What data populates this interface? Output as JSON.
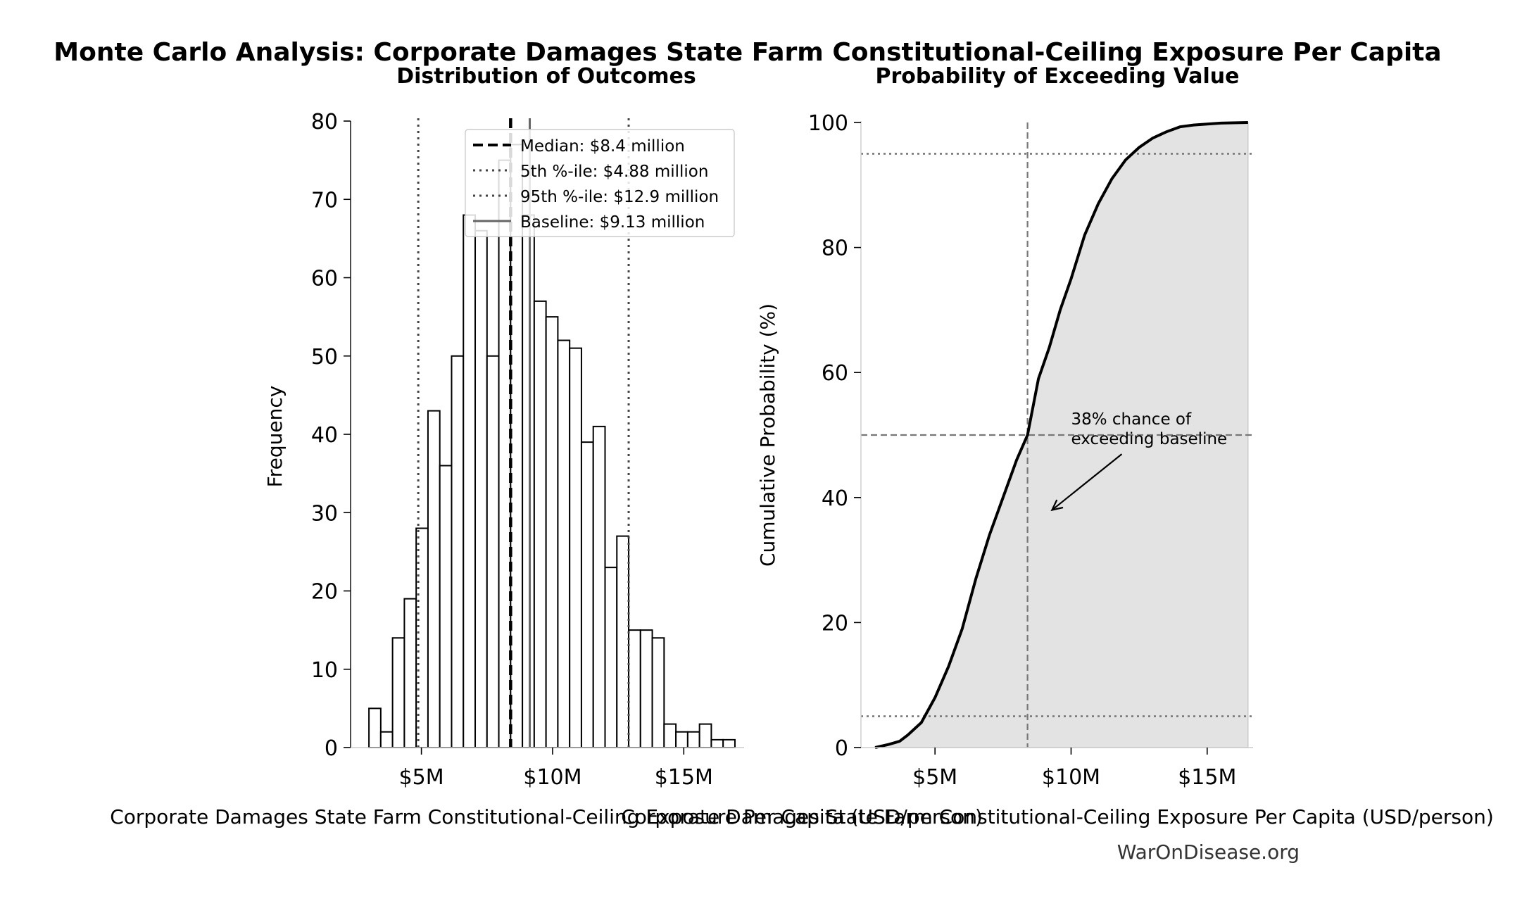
{
  "figure": {
    "suptitle": "Monte Carlo Analysis: Corporate Damages State Farm Constitutional-Ceiling Exposure Per Capita",
    "watermark": "WarOnDisease.org"
  },
  "colors": {
    "bar_fill": "#ffffff",
    "bar_edge": "#000000",
    "median_line": "#000000",
    "percentile_line": "#444444",
    "baseline_line": "#666666",
    "cdf_line": "#000000",
    "cdf_fill": "#e3e3e3",
    "reference_line": "#777777"
  },
  "chart_data": [
    {
      "type": "bar",
      "title": "Distribution of Outcomes",
      "xlabel": "Corporate Damages State Farm Constitutional-Ceiling Exposure Per Capita (USD/person)",
      "ylabel": "Frequency",
      "xlim": [
        2300000,
        17300000
      ],
      "ylim": [
        0,
        80
      ],
      "x_ticks": [
        {
          "value": 5000000,
          "label": "$5M"
        },
        {
          "value": 10000000,
          "label": "$10M"
        },
        {
          "value": 15000000,
          "label": "$15M"
        }
      ],
      "y_ticks": [
        {
          "value": 0,
          "label": "0"
        },
        {
          "value": 10,
          "label": "10"
        },
        {
          "value": 20,
          "label": "20"
        },
        {
          "value": 30,
          "label": "30"
        },
        {
          "value": 40,
          "label": "40"
        },
        {
          "value": 50,
          "label": "50"
        },
        {
          "value": 60,
          "label": "60"
        },
        {
          "value": 70,
          "label": "70"
        },
        {
          "value": 80,
          "label": "80"
        }
      ],
      "bin_start": 3000000,
      "bin_width": 450000,
      "values": [
        5,
        2,
        14,
        19,
        28,
        43,
        36,
        50,
        68,
        66,
        50,
        75,
        77,
        68,
        57,
        55,
        52,
        51,
        39,
        41,
        23,
        27,
        15,
        15,
        14,
        3,
        2,
        2,
        3,
        1,
        1
      ],
      "reference_lines": [
        {
          "name": "median",
          "value": 8400000,
          "style": "dashed"
        },
        {
          "name": "p5",
          "value": 4880000,
          "style": "dotted"
        },
        {
          "name": "p95",
          "value": 12900000,
          "style": "dotted"
        },
        {
          "name": "baseline",
          "value": 9130000,
          "style": "solid"
        }
      ],
      "legend": {
        "position": "top-right",
        "entries": [
          {
            "label": "Median: $8.4 million",
            "style": "dashed"
          },
          {
            "label": "5th %-ile: $4.88 million",
            "style": "dotted"
          },
          {
            "label": "95th %-ile: $12.9 million",
            "style": "dotted"
          },
          {
            "label": "Baseline: $9.13 million",
            "style": "solid"
          }
        ]
      },
      "grid": false
    },
    {
      "type": "area",
      "title": "Probability of Exceeding Value",
      "xlabel": "Corporate Damages State Farm Constitutional-Ceiling Exposure Per Capita (USD/person)",
      "ylabel": "Cumulative Probability (%)",
      "xlim": [
        3000000,
        16500000
      ],
      "ylim": [
        0,
        100
      ],
      "x_ticks": [
        {
          "value": 5000000,
          "label": "$5M"
        },
        {
          "value": 10000000,
          "label": "$10M"
        },
        {
          "value": 15000000,
          "label": "$15M"
        }
      ],
      "y_ticks": [
        {
          "value": 0,
          "label": "0"
        },
        {
          "value": 20,
          "label": "20"
        },
        {
          "value": 40,
          "label": "40"
        },
        {
          "value": 60,
          "label": "60"
        },
        {
          "value": 80,
          "label": "80"
        },
        {
          "value": 100,
          "label": "100"
        }
      ],
      "x": [
        2800000,
        3300000,
        3700000,
        4000000,
        4500000,
        5000000,
        5500000,
        6000000,
        6500000,
        7000000,
        7500000,
        8000000,
        8400000,
        8800000,
        9200000,
        9600000,
        10000000,
        10500000,
        11000000,
        11500000,
        12000000,
        12500000,
        13000000,
        13500000,
        14000000,
        14500000,
        15500000,
        16500000
      ],
      "y": [
        0,
        0.5,
        1,
        2,
        4,
        8,
        13,
        19,
        27,
        34,
        40,
        46,
        50,
        59,
        64,
        70,
        75,
        82,
        87,
        91,
        94,
        96,
        97.5,
        98.5,
        99.3,
        99.6,
        99.9,
        100
      ],
      "reference_lines": [
        {
          "name": "median",
          "axis": "x",
          "value": 8400000,
          "style": "dashed"
        },
        {
          "name": "50pct",
          "axis": "y",
          "value": 50,
          "style": "dashed"
        },
        {
          "name": "5pct",
          "axis": "y",
          "value": 5,
          "style": "dotted"
        },
        {
          "name": "95pct",
          "axis": "y",
          "value": 95,
          "style": "dotted"
        }
      ],
      "annotation": {
        "lines": [
          "38% chance of",
          "exceeding baseline"
        ],
        "point_x": 9300000,
        "point_y": 38,
        "text_x": 10000000,
        "text_y": 51
      },
      "grid": false
    }
  ]
}
